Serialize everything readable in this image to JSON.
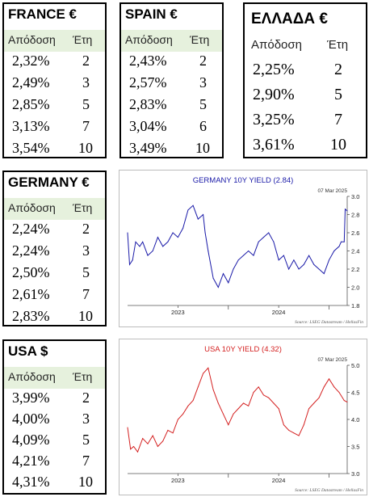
{
  "tables": {
    "france": {
      "title": "FRANCE €",
      "col_yield": "Απόδοση",
      "col_years": "Έτη",
      "rows": [
        {
          "y": "2,32%",
          "t": "2"
        },
        {
          "y": "2,49%",
          "t": "3"
        },
        {
          "y": "2,85%",
          "t": "5"
        },
        {
          "y": "3,13%",
          "t": "7"
        },
        {
          "y": "3,54%",
          "t": "10"
        }
      ]
    },
    "spain": {
      "title": "SPAIN €",
      "col_yield": "Απόδοση",
      "col_years": "Έτη",
      "rows": [
        {
          "y": "2,43%",
          "t": "2"
        },
        {
          "y": "2,57%",
          "t": "3"
        },
        {
          "y": "2,83%",
          "t": "5"
        },
        {
          "y": "3,04%",
          "t": "6"
        },
        {
          "y": "3,49%",
          "t": "10"
        }
      ]
    },
    "greece": {
      "title": "ΕΛΛΑΔΑ €",
      "col_yield": "Απόδοση",
      "col_years": "Έτη",
      "rows": [
        {
          "y": "2,25%",
          "t": "2"
        },
        {
          "y": "2,90%",
          "t": "5"
        },
        {
          "y": "3,25%",
          "t": "7"
        },
        {
          "y": "3,61%",
          "t": "10"
        }
      ]
    },
    "germany": {
      "title": "GERMANY €",
      "col_yield": "Απόδοση",
      "col_years": "Έτη",
      "rows": [
        {
          "y": "2,24%",
          "t": "2"
        },
        {
          "y": "2,24%",
          "t": "3"
        },
        {
          "y": "2,50%",
          "t": "5"
        },
        {
          "y": "2,61%",
          "t": "7"
        },
        {
          "y": "2,83%",
          "t": "10"
        }
      ]
    },
    "usa": {
      "title": "USA $",
      "col_yield": "Απόδοση",
      "col_years": "Έτη",
      "rows": [
        {
          "y": "3,99%",
          "t": "2"
        },
        {
          "y": "4,00%",
          "t": "3"
        },
        {
          "y": "4,09%",
          "t": "5"
        },
        {
          "y": "4,21%",
          "t": "7"
        },
        {
          "y": "4,31%",
          "t": "10"
        }
      ]
    }
  },
  "chart_data": [
    {
      "type": "line",
      "title": "GERMANY 10Y YIELD  (2.84)",
      "date_label": "07 Mar 2025",
      "source": "Source: LSEG Datastream / HellasFin",
      "color": "#1a1aa8",
      "ylim": [
        1.8,
        3.0
      ],
      "yticks": [
        "1.8",
        "2.0",
        "2.2",
        "2.4",
        "2.6",
        "2.8",
        "3.0"
      ],
      "xticks": [
        {
          "label": "2023",
          "x": 2023.5
        },
        {
          "label": "2024",
          "x": 2024.5
        }
      ],
      "xlim": [
        2023.0,
        2025.18
      ],
      "series": [
        {
          "x": [
            2023.0,
            2023.02,
            2023.05,
            2023.08,
            2023.12,
            2023.15,
            2023.2,
            2023.25,
            2023.3,
            2023.35,
            2023.4,
            2023.45,
            2023.5,
            2023.55,
            2023.6,
            2023.65,
            2023.7,
            2023.75,
            2023.77,
            2023.8,
            2023.85,
            2023.9,
            2023.95,
            2024.0,
            2024.05,
            2024.1,
            2024.15,
            2024.2,
            2024.25,
            2024.3,
            2024.35,
            2024.4,
            2024.45,
            2024.5,
            2024.55,
            2024.6,
            2024.65,
            2024.7,
            2024.75,
            2024.8,
            2024.85,
            2024.9,
            2024.95,
            2025.0,
            2025.05,
            2025.1,
            2025.12,
            2025.15,
            2025.16,
            2025.18
          ],
          "y": [
            2.6,
            2.25,
            2.3,
            2.5,
            2.45,
            2.5,
            2.35,
            2.4,
            2.55,
            2.45,
            2.5,
            2.6,
            2.55,
            2.65,
            2.85,
            2.9,
            2.75,
            2.8,
            2.6,
            2.4,
            2.1,
            2.0,
            2.15,
            2.05,
            2.2,
            2.3,
            2.35,
            2.4,
            2.35,
            2.5,
            2.55,
            2.6,
            2.5,
            2.3,
            2.35,
            2.2,
            2.3,
            2.2,
            2.25,
            2.35,
            2.25,
            2.2,
            2.15,
            2.3,
            2.4,
            2.45,
            2.5,
            2.5,
            2.86,
            2.84
          ]
        }
      ]
    },
    {
      "type": "line",
      "title": "USA 10Y YIELD  (4.32)",
      "date_label": "07 Mar 2025",
      "source": "Source: LSEG Datastream / HellasFin",
      "color": "#d42020",
      "ylim": [
        3.0,
        5.0
      ],
      "yticks": [
        "3.0",
        "3.5",
        "4.0",
        "4.5",
        "5.0"
      ],
      "xticks": [
        {
          "label": "2023",
          "x": 2023.5
        },
        {
          "label": "2024",
          "x": 2024.5
        }
      ],
      "xlim": [
        2023.0,
        2025.18
      ],
      "series": [
        {
          "x": [
            2023.0,
            2023.03,
            2023.06,
            2023.1,
            2023.15,
            2023.2,
            2023.25,
            2023.3,
            2023.35,
            2023.4,
            2023.45,
            2023.5,
            2023.55,
            2023.6,
            2023.65,
            2023.7,
            2023.75,
            2023.8,
            2023.85,
            2023.9,
            2023.95,
            2024.0,
            2024.05,
            2024.1,
            2024.15,
            2024.2,
            2024.25,
            2024.3,
            2024.35,
            2024.4,
            2024.45,
            2024.5,
            2024.55,
            2024.6,
            2024.65,
            2024.7,
            2024.75,
            2024.8,
            2024.85,
            2024.9,
            2024.95,
            2025.0,
            2025.05,
            2025.1,
            2025.15,
            2025.18
          ],
          "y": [
            3.85,
            3.45,
            3.5,
            3.4,
            3.65,
            3.55,
            3.7,
            3.5,
            3.6,
            3.8,
            3.75,
            4.0,
            4.1,
            4.25,
            4.35,
            4.6,
            4.85,
            4.95,
            4.55,
            4.3,
            4.1,
            3.9,
            4.1,
            4.2,
            4.3,
            4.25,
            4.5,
            4.6,
            4.45,
            4.4,
            4.3,
            4.2,
            3.9,
            3.8,
            3.75,
            3.7,
            3.9,
            4.2,
            4.3,
            4.4,
            4.6,
            4.75,
            4.6,
            4.5,
            4.35,
            4.32
          ]
        }
      ]
    }
  ]
}
